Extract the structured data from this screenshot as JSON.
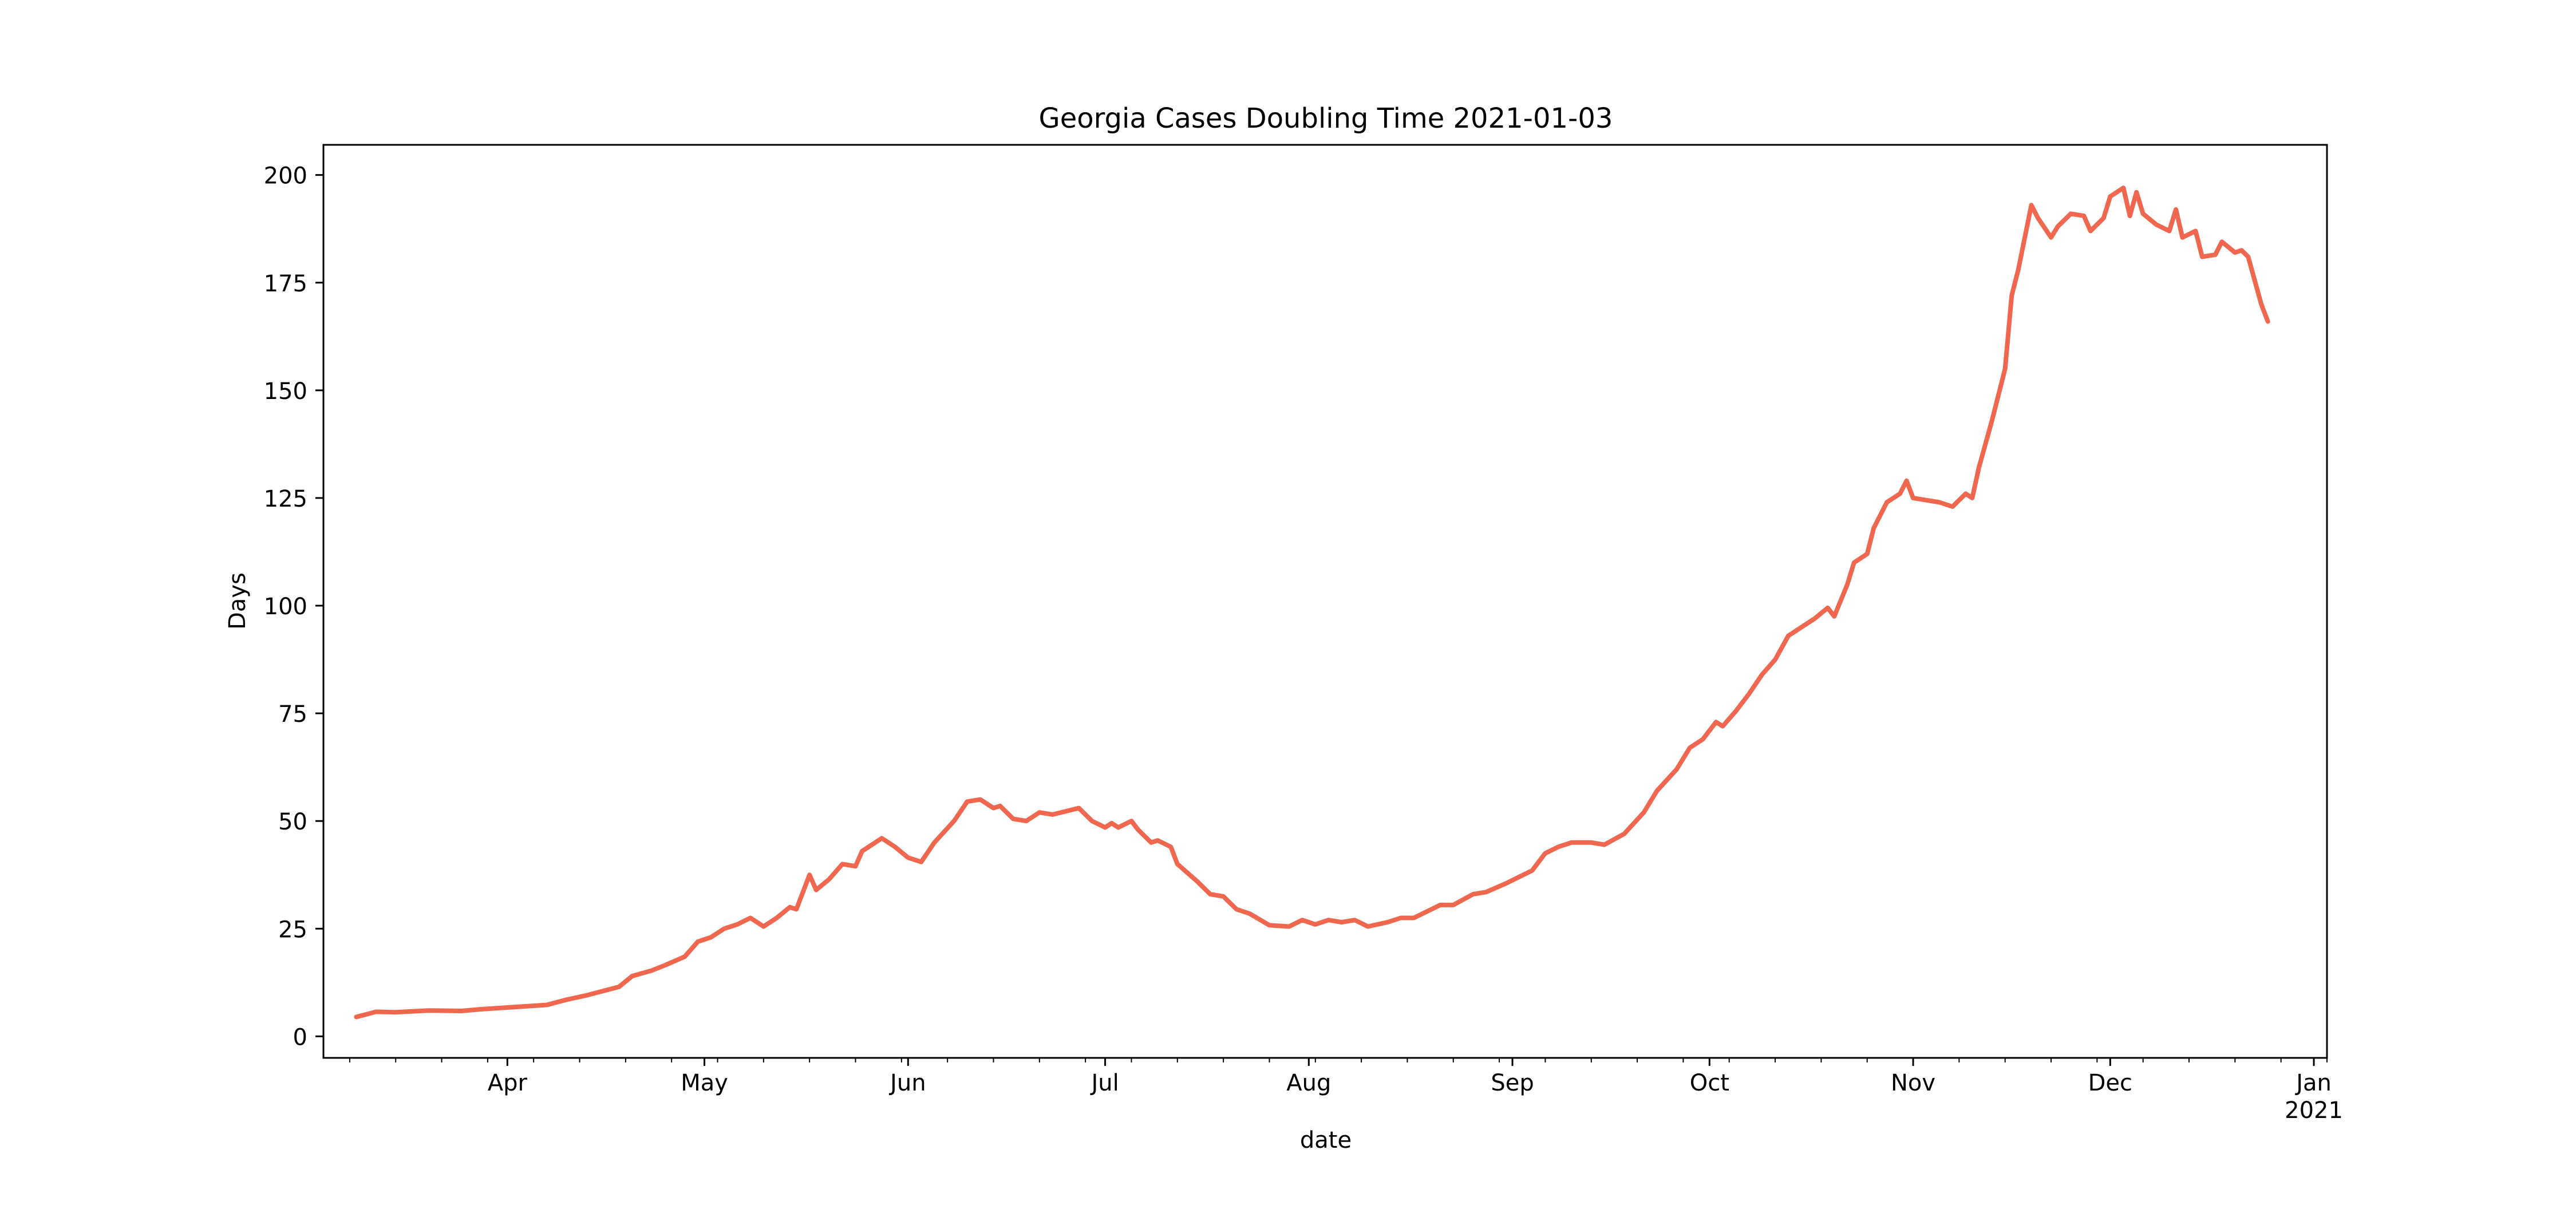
{
  "chart_data": {
    "type": "line",
    "title": "Georgia Cases Doubling Time 2021-01-03",
    "xlabel": "date",
    "ylabel": "Days",
    "xlim": [
      "2020-03-04",
      "2021-01-03"
    ],
    "ylim": [
      -5,
      207
    ],
    "yticks": [
      0,
      25,
      50,
      75,
      100,
      125,
      150,
      175,
      200
    ],
    "xticks": [
      {
        "date": "2020-04-01",
        "label": "Apr",
        "sublabel": ""
      },
      {
        "date": "2020-05-01",
        "label": "May",
        "sublabel": ""
      },
      {
        "date": "2020-06-01",
        "label": "Jun",
        "sublabel": ""
      },
      {
        "date": "2020-07-01",
        "label": "Jul",
        "sublabel": ""
      },
      {
        "date": "2020-08-01",
        "label": "Aug",
        "sublabel": ""
      },
      {
        "date": "2020-09-01",
        "label": "Sep",
        "sublabel": ""
      },
      {
        "date": "2020-10-01",
        "label": "Oct",
        "sublabel": ""
      },
      {
        "date": "2020-11-01",
        "label": "Nov",
        "sublabel": ""
      },
      {
        "date": "2020-12-01",
        "label": "Dec",
        "sublabel": ""
      },
      {
        "date": "2021-01-01",
        "label": "Jan",
        "sublabel": "2021"
      }
    ],
    "grid": false,
    "line_color": "#f0674f",
    "series": [
      {
        "values": [
          [
            "2020-03-09",
            4.5
          ],
          [
            "2020-03-12",
            5.7
          ],
          [
            "2020-03-15",
            5.6
          ],
          [
            "2020-03-20",
            6.0
          ],
          [
            "2020-03-25",
            5.9
          ],
          [
            "2020-03-28",
            6.3
          ],
          [
            "2020-04-01",
            6.7
          ],
          [
            "2020-04-04",
            7.0
          ],
          [
            "2020-04-07",
            7.3
          ],
          [
            "2020-04-10",
            8.5
          ],
          [
            "2020-04-13",
            9.5
          ],
          [
            "2020-04-15",
            10.3
          ],
          [
            "2020-04-18",
            11.5
          ],
          [
            "2020-04-20",
            14.0
          ],
          [
            "2020-04-23",
            15.3
          ],
          [
            "2020-04-25",
            16.5
          ],
          [
            "2020-04-28",
            18.5
          ],
          [
            "2020-04-30",
            22.0
          ],
          [
            "2020-05-02",
            23.0
          ],
          [
            "2020-05-04",
            25.0
          ],
          [
            "2020-05-06",
            26.0
          ],
          [
            "2020-05-08",
            27.5
          ],
          [
            "2020-05-10",
            25.5
          ],
          [
            "2020-05-12",
            27.5
          ],
          [
            "2020-05-14",
            30.0
          ],
          [
            "2020-05-15",
            29.5
          ],
          [
            "2020-05-17",
            37.5
          ],
          [
            "2020-05-18",
            34.0
          ],
          [
            "2020-05-20",
            36.5
          ],
          [
            "2020-05-22",
            40.0
          ],
          [
            "2020-05-24",
            39.5
          ],
          [
            "2020-05-25",
            43.0
          ],
          [
            "2020-05-28",
            46.0
          ],
          [
            "2020-05-30",
            44.0
          ],
          [
            "2020-06-01",
            41.5
          ],
          [
            "2020-06-03",
            40.5
          ],
          [
            "2020-06-05",
            45.0
          ],
          [
            "2020-06-08",
            50.0
          ],
          [
            "2020-06-10",
            54.5
          ],
          [
            "2020-06-12",
            55.0
          ],
          [
            "2020-06-14",
            53.0
          ],
          [
            "2020-06-15",
            53.5
          ],
          [
            "2020-06-17",
            50.5
          ],
          [
            "2020-06-19",
            50.0
          ],
          [
            "2020-06-21",
            52.0
          ],
          [
            "2020-06-23",
            51.5
          ],
          [
            "2020-06-27",
            53.0
          ],
          [
            "2020-06-29",
            50.0
          ],
          [
            "2020-07-01",
            48.5
          ],
          [
            "2020-07-02",
            49.5
          ],
          [
            "2020-07-03",
            48.5
          ],
          [
            "2020-07-05",
            50.0
          ],
          [
            "2020-07-06",
            48.0
          ],
          [
            "2020-07-08",
            45.0
          ],
          [
            "2020-07-09",
            45.5
          ],
          [
            "2020-07-11",
            44.0
          ],
          [
            "2020-07-12",
            40.0
          ],
          [
            "2020-07-15",
            36.0
          ],
          [
            "2020-07-17",
            33.0
          ],
          [
            "2020-07-19",
            32.5
          ],
          [
            "2020-07-21",
            29.5
          ],
          [
            "2020-07-23",
            28.5
          ],
          [
            "2020-07-26",
            25.8
          ],
          [
            "2020-07-29",
            25.5
          ],
          [
            "2020-07-31",
            27.0
          ],
          [
            "2020-08-02",
            26.0
          ],
          [
            "2020-08-04",
            27.0
          ],
          [
            "2020-08-06",
            26.5
          ],
          [
            "2020-08-08",
            27.0
          ],
          [
            "2020-08-10",
            25.5
          ],
          [
            "2020-08-13",
            26.5
          ],
          [
            "2020-08-15",
            27.5
          ],
          [
            "2020-08-17",
            27.5
          ],
          [
            "2020-08-19",
            29.0
          ],
          [
            "2020-08-21",
            30.5
          ],
          [
            "2020-08-23",
            30.5
          ],
          [
            "2020-08-26",
            33.0
          ],
          [
            "2020-08-28",
            33.5
          ],
          [
            "2020-08-31",
            35.5
          ],
          [
            "2020-09-02",
            37.0
          ],
          [
            "2020-09-04",
            38.5
          ],
          [
            "2020-09-06",
            42.5
          ],
          [
            "2020-09-08",
            44.0
          ],
          [
            "2020-09-10",
            45.0
          ],
          [
            "2020-09-13",
            45.0
          ],
          [
            "2020-09-15",
            44.5
          ],
          [
            "2020-09-18",
            47.0
          ],
          [
            "2020-09-21",
            52.0
          ],
          [
            "2020-09-23",
            57.0
          ],
          [
            "2020-09-26",
            62.0
          ],
          [
            "2020-09-28",
            67.0
          ],
          [
            "2020-09-30",
            69.0
          ],
          [
            "2020-10-02",
            73.0
          ],
          [
            "2020-10-03",
            72.0
          ],
          [
            "2020-10-05",
            75.5
          ],
          [
            "2020-10-07",
            79.5
          ],
          [
            "2020-10-09",
            84.0
          ],
          [
            "2020-10-11",
            87.5
          ],
          [
            "2020-10-13",
            93.0
          ],
          [
            "2020-10-15",
            95.0
          ],
          [
            "2020-10-17",
            97.0
          ],
          [
            "2020-10-19",
            99.5
          ],
          [
            "2020-10-20",
            97.5
          ],
          [
            "2020-10-22",
            105.0
          ],
          [
            "2020-10-23",
            110.0
          ],
          [
            "2020-10-25",
            112.0
          ],
          [
            "2020-10-26",
            118.0
          ],
          [
            "2020-10-28",
            124.0
          ],
          [
            "2020-10-30",
            126.0
          ],
          [
            "2020-10-31",
            129.0
          ],
          [
            "2020-11-01",
            125.0
          ],
          [
            "2020-11-03",
            124.5
          ],
          [
            "2020-11-05",
            124.0
          ],
          [
            "2020-11-07",
            123.0
          ],
          [
            "2020-11-09",
            126.0
          ],
          [
            "2020-11-10",
            125.0
          ],
          [
            "2020-11-11",
            132.0
          ],
          [
            "2020-11-13",
            143.0
          ],
          [
            "2020-11-15",
            155.0
          ],
          [
            "2020-11-16",
            172.0
          ],
          [
            "2020-11-17",
            178.0
          ],
          [
            "2020-11-19",
            193.0
          ],
          [
            "2020-11-20",
            190.0
          ],
          [
            "2020-11-22",
            185.5
          ],
          [
            "2020-11-23",
            188.0
          ],
          [
            "2020-11-25",
            191.0
          ],
          [
            "2020-11-27",
            190.5
          ],
          [
            "2020-11-28",
            187.0
          ],
          [
            "2020-11-30",
            190.0
          ],
          [
            "2020-12-01",
            195.0
          ],
          [
            "2020-12-03",
            197.0
          ],
          [
            "2020-12-04",
            190.5
          ],
          [
            "2020-12-05",
            196.0
          ],
          [
            "2020-12-06",
            191.0
          ],
          [
            "2020-12-08",
            188.5
          ],
          [
            "2020-12-10",
            187.0
          ],
          [
            "2020-12-11",
            192.0
          ],
          [
            "2020-12-12",
            185.5
          ],
          [
            "2020-12-14",
            187.0
          ],
          [
            "2020-12-15",
            181.0
          ],
          [
            "2020-12-17",
            181.5
          ],
          [
            "2020-12-18",
            184.5
          ],
          [
            "2020-12-20",
            182.0
          ],
          [
            "2020-12-21",
            182.5
          ],
          [
            "2020-12-22",
            181.0
          ],
          [
            "2020-12-24",
            170.0
          ],
          [
            "2020-12-25",
            166.0
          ]
        ]
      }
    ]
  }
}
